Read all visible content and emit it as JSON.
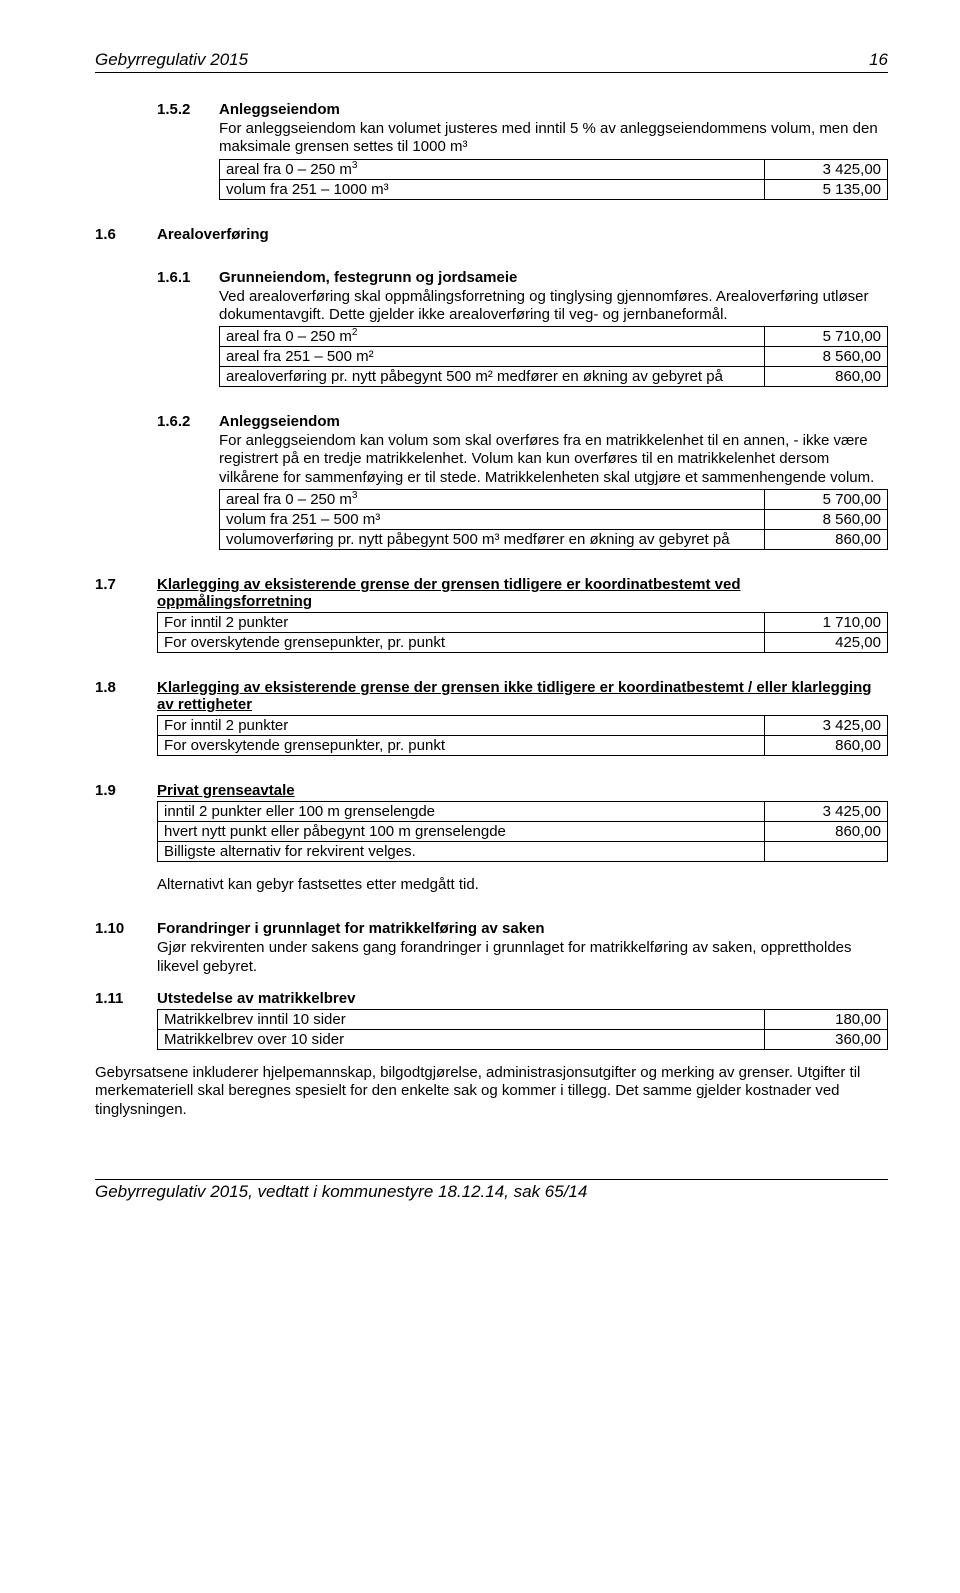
{
  "header": {
    "title": "Gebyrregulativ 2015",
    "page": "16"
  },
  "s152": {
    "num": "1.5.2",
    "title": "Anleggseiendom",
    "body": "For anleggseiendom kan volumet justeres med inntil 5 % av anleggseiendommens volum, men den maksimale grensen settes til 1000 m³",
    "rows": [
      {
        "label_html": "areal fra 0 – 250 m<sup>3</sup>",
        "amount": "3 425,00"
      },
      {
        "label_html": "volum fra 251 – 1000 m³",
        "amount": "5 135,00"
      }
    ]
  },
  "s16": {
    "num": "1.6",
    "title": "Arealoverføring"
  },
  "s161": {
    "num": "1.6.1",
    "title": "Grunneiendom, festegrunn og jordsameie",
    "body": "Ved arealoverføring skal oppmålingsforretning og tinglysing gjennomføres. Arealoverføring utløser dokumentavgift. Dette gjelder ikke arealoverføring til veg- og jernbaneformål.",
    "rows": [
      {
        "label_html": "areal fra 0 – 250 m<sup>2</sup>",
        "amount": "5 710,00"
      },
      {
        "label_html": "areal fra 251 – 500 m²",
        "amount": "8 560,00"
      },
      {
        "label_html": "arealoverføring pr. nytt påbegynt 500 m² medfører en økning av gebyret på",
        "amount": "860,00"
      }
    ]
  },
  "s162": {
    "num": "1.6.2",
    "title": "Anleggseiendom",
    "body": "For anleggseiendom kan volum som skal overføres fra en matrikkelenhet til en annen, - ikke være registrert på en tredje matrikkelenhet. Volum kan kun overføres til en matrikkelenhet dersom vilkårene for sammenføying er til stede. Matrikkelenheten skal utgjøre et sammenhengende volum.",
    "rows": [
      {
        "label_html": "areal fra 0 – 250 m<sup>3</sup>",
        "amount": "5 700,00"
      },
      {
        "label_html": "volum fra 251 – 500 m³",
        "amount": "8 560,00"
      },
      {
        "label_html": "volumoverføring pr. nytt påbegynt 500 m³ medfører en økning av gebyret på",
        "amount": "860,00"
      }
    ]
  },
  "s17": {
    "num": "1.7",
    "title_html": "<span class=\"underline\">Klarlegging av eksisterende grense der grensen tidligere er koordinatbestemt ved oppmålingsforretning</span>",
    "rows": [
      {
        "label_html": "For inntil 2 punkter",
        "amount": "1 710,00"
      },
      {
        "label_html": "For overskytende grensepunkter, pr. punkt",
        "amount": "425,00"
      }
    ]
  },
  "s18": {
    "num": "1.8",
    "title_html": "<span class=\"underline\">Klarlegging av eksisterende grense der grensen ikke tidligere er koordinatbestemt / eller klarlegging av rettigheter</span>",
    "rows": [
      {
        "label_html": "For inntil 2 punkter",
        "amount": "3 425,00"
      },
      {
        "label_html": "For overskytende grensepunkter, pr. punkt",
        "amount": "860,00"
      }
    ]
  },
  "s19": {
    "num": "1.9",
    "title_html": "<span class=\"underline\">Privat grenseavtale</span>",
    "rows": [
      {
        "label_html": "inntil 2 punkter eller 100 m grenselengde",
        "amount": "3 425,00"
      },
      {
        "label_html": "hvert nytt punkt eller påbegynt 100 m grenselengde",
        "amount": "860,00"
      },
      {
        "label_html": "Billigste alternativ for rekvirent velges.",
        "amount": ""
      }
    ],
    "after": "Alternativt kan gebyr fastsettes etter medgått tid."
  },
  "s110": {
    "num": "1.10",
    "title": "Forandringer i grunnlaget for matrikkelføring av saken",
    "body": "Gjør rekvirenten under sakens gang forandringer i grunnlaget for matrikkelføring av saken, opprettholdes likevel gebyret."
  },
  "s111": {
    "num": "1.11",
    "title": "Utstedelse av matrikkelbrev",
    "rows": [
      {
        "label_html": "Matrikkelbrev inntil 10 sider",
        "amount": "180,00"
      },
      {
        "label_html": "Matrikkelbrev over 10 sider",
        "amount": "360,00"
      }
    ]
  },
  "closing": "Gebyrsatsene inkluderer hjelpemannskap, bilgodtgjørelse, administrasjonsutgifter og merking av grenser. Utgifter til merkemateriell skal beregnes spesielt for den enkelte sak og kommer i tillegg. Det samme gjelder kostnader ved tinglysningen.",
  "footer": "Gebyrregulativ 2015, vedtatt i kommunestyre 18.12.14, sak 65/14"
}
